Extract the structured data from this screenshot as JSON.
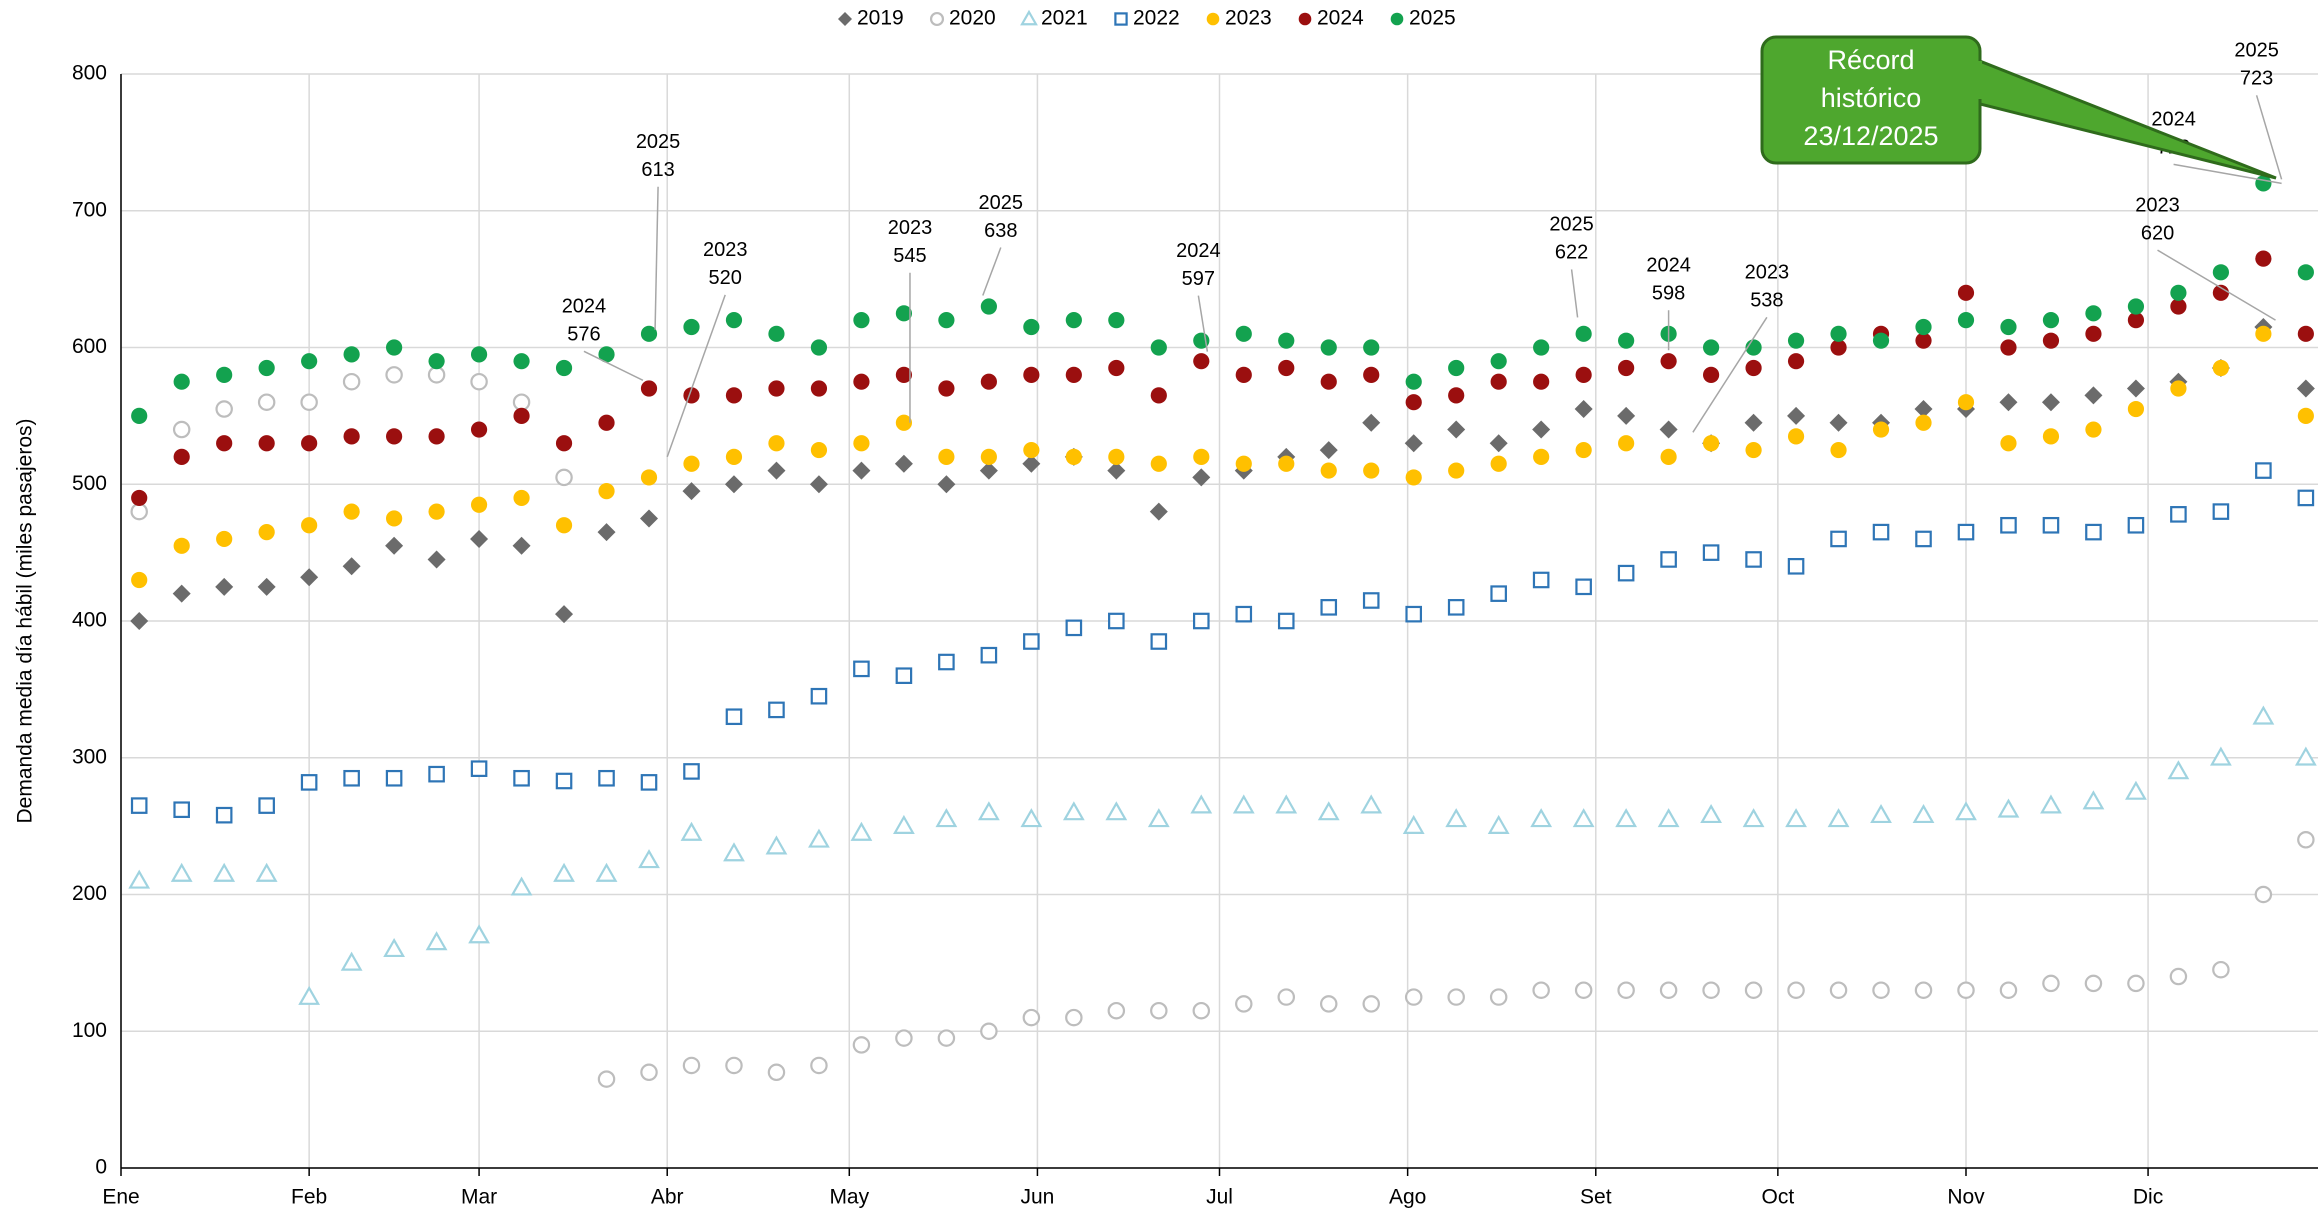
{
  "chart_data": {
    "type": "scatter",
    "y_label": "Demanda media día hábil (miles pasajeros)",
    "x": [
      3,
      10,
      17,
      24,
      31,
      38,
      45,
      52,
      59,
      66,
      73,
      80,
      87,
      94,
      101,
      108,
      115,
      122,
      129,
      136,
      143,
      150,
      157,
      164,
      171,
      178,
      185,
      192,
      199,
      206,
      213,
      220,
      227,
      234,
      241,
      248,
      255,
      262,
      269,
      276,
      283,
      290,
      297,
      304,
      311,
      318,
      325,
      332,
      339,
      346,
      353,
      360
    ],
    "xlim": [
      0,
      362
    ],
    "xticks": [
      {
        "value": 0,
        "label": "Ene"
      },
      {
        "value": 31,
        "label": "Feb"
      },
      {
        "value": 59,
        "label": "Mar"
      },
      {
        "value": 90,
        "label": "Abr"
      },
      {
        "value": 120,
        "label": "May"
      },
      {
        "value": 151,
        "label": "Jun"
      },
      {
        "value": 181,
        "label": "Jul"
      },
      {
        "value": 212,
        "label": "Ago"
      },
      {
        "value": 243,
        "label": "Set"
      },
      {
        "value": 273,
        "label": "Oct"
      },
      {
        "value": 304,
        "label": "Nov"
      },
      {
        "value": 334,
        "label": "Dic"
      }
    ],
    "ylim": [
      0,
      800
    ],
    "yticks": [
      0,
      100,
      200,
      300,
      400,
      500,
      600,
      700,
      800
    ],
    "grid": true,
    "series": [
      {
        "name": "2019",
        "color": "#6b6b6b",
        "marker": "diamond",
        "values": [
          400,
          420,
          425,
          425,
          432,
          440,
          455,
          445,
          460,
          455,
          405,
          465,
          475,
          495,
          500,
          510,
          500,
          510,
          515,
          500,
          510,
          515,
          520,
          510,
          480,
          505,
          510,
          520,
          525,
          545,
          530,
          540,
          530,
          540,
          555,
          550,
          540,
          530,
          545,
          550,
          545,
          545,
          555,
          555,
          560,
          560,
          565,
          570,
          575,
          585,
          615,
          570
        ]
      },
      {
        "name": "2020",
        "color": "#bdbdbd",
        "marker": "circle-open",
        "values": [
          480,
          540,
          555,
          560,
          560,
          575,
          580,
          580,
          575,
          560,
          505,
          65,
          70,
          75,
          75,
          70,
          75,
          90,
          95,
          95,
          100,
          110,
          110,
          115,
          115,
          115,
          120,
          125,
          120,
          120,
          125,
          125,
          125,
          130,
          130,
          130,
          130,
          130,
          130,
          130,
          130,
          130,
          130,
          130,
          130,
          135,
          135,
          135,
          140,
          145,
          200,
          240
        ]
      },
      {
        "name": "2021",
        "color": "#9fd3e0",
        "marker": "triangle-open",
        "values": [
          210,
          215,
          215,
          215,
          125,
          150,
          160,
          165,
          170,
          205,
          215,
          215,
          225,
          245,
          230,
          235,
          240,
          245,
          250,
          255,
          260,
          255,
          260,
          260,
          255,
          265,
          265,
          265,
          260,
          265,
          250,
          255,
          250,
          255,
          255,
          255,
          255,
          258,
          255,
          255,
          255,
          258,
          258,
          260,
          262,
          265,
          268,
          275,
          290,
          300,
          330,
          300
        ]
      },
      {
        "name": "2022",
        "color": "#2e75b6",
        "marker": "square-open",
        "values": [
          265,
          262,
          258,
          265,
          282,
          285,
          285,
          288,
          292,
          285,
          283,
          285,
          282,
          290,
          330,
          335,
          345,
          365,
          360,
          370,
          375,
          385,
          395,
          400,
          385,
          400,
          405,
          400,
          410,
          415,
          405,
          410,
          420,
          430,
          425,
          435,
          445,
          450,
          445,
          440,
          460,
          465,
          460,
          465,
          470,
          470,
          465,
          470,
          478,
          480,
          510,
          490
        ]
      },
      {
        "name": "2023",
        "color": "#ffc000",
        "marker": "circle",
        "values": [
          430,
          455,
          460,
          465,
          470,
          480,
          475,
          480,
          485,
          490,
          470,
          495,
          505,
          515,
          520,
          530,
          525,
          530,
          545,
          520,
          520,
          525,
          520,
          520,
          515,
          520,
          515,
          515,
          510,
          510,
          505,
          510,
          515,
          520,
          525,
          530,
          520,
          530,
          525,
          535,
          525,
          540,
          545,
          560,
          530,
          535,
          540,
          555,
          570,
          585,
          610,
          550
        ]
      },
      {
        "name": "2024",
        "color": "#9b0f0f",
        "marker": "circle",
        "values": [
          490,
          520,
          530,
          530,
          530,
          535,
          535,
          535,
          540,
          550,
          530,
          545,
          570,
          565,
          565,
          570,
          570,
          575,
          580,
          570,
          575,
          580,
          580,
          585,
          565,
          590,
          580,
          585,
          575,
          580,
          560,
          565,
          575,
          575,
          580,
          585,
          590,
          580,
          585,
          590,
          600,
          610,
          605,
          640,
          600,
          605,
          610,
          620,
          630,
          640,
          665,
          610
        ]
      },
      {
        "name": "2025",
        "color": "#13a24f",
        "marker": "circle",
        "values": [
          550,
          575,
          580,
          585,
          590,
          595,
          600,
          590,
          595,
          590,
          585,
          595,
          610,
          615,
          620,
          610,
          600,
          620,
          625,
          620,
          630,
          615,
          620,
          620,
          600,
          605,
          610,
          605,
          600,
          600,
          575,
          585,
          590,
          600,
          610,
          605,
          610,
          600,
          600,
          605,
          610,
          605,
          615,
          620,
          615,
          620,
          625,
          630,
          640,
          655,
          720,
          655
        ]
      }
    ],
    "annotations": [
      {
        "label": "2024",
        "value": 576,
        "x": 86
      },
      {
        "label": "2025",
        "value": 613,
        "x": 88
      },
      {
        "label": "2023",
        "value": 520,
        "x": 90
      },
      {
        "label": "2023",
        "value": 545,
        "x": 130
      },
      {
        "label": "2025",
        "value": 638,
        "x": 142
      },
      {
        "label": "2024",
        "value": 597,
        "x": 179
      },
      {
        "label": "2025",
        "value": 622,
        "x": 240
      },
      {
        "label": "2024",
        "value": 598,
        "x": 255
      },
      {
        "label": "2023",
        "value": 538,
        "x": 259
      },
      {
        "label": "2023",
        "value": 620,
        "x": 355
      },
      {
        "label": "2024",
        "value": 720,
        "x": 356
      },
      {
        "label": "2025",
        "value": 723,
        "x": 356
      }
    ],
    "callout": [
      "Récord",
      "histórico",
      "23/12/2025"
    ]
  }
}
